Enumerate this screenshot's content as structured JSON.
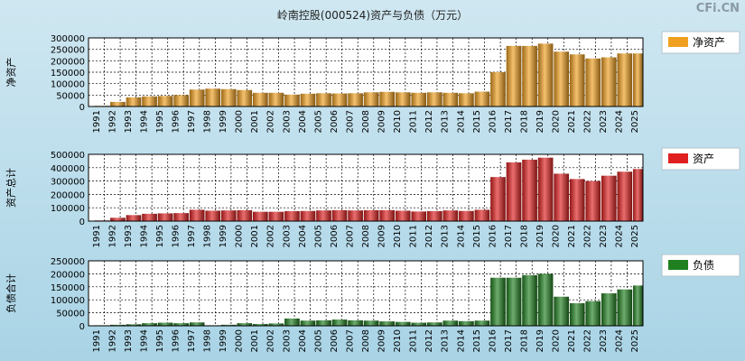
{
  "header": {
    "title": "岭南控股(000524)资产与负债（万元）",
    "watermark": "CFi.CN"
  },
  "colors": {
    "net_assets": "#f0a020",
    "assets": "#e02020",
    "liabilities": "#208020",
    "plot_bg": "#ffffff",
    "grid": "#000000"
  },
  "chart_data": [
    {
      "type": "bar",
      "id": "net_assets",
      "title": "岭南控股(000524)资产与负债（万元）",
      "ylabel": "净资产",
      "legend": "净资产",
      "ylim": [
        0,
        300000
      ],
      "yticks": [
        0,
        50000,
        100000,
        150000,
        200000,
        250000,
        300000
      ],
      "categories": [
        "1991",
        "1992",
        "1993",
        "1994",
        "1995",
        "1996",
        "1997",
        "1998",
        "1999",
        "2000",
        "2001",
        "2002",
        "2003",
        "2004",
        "2005",
        "2006",
        "2007",
        "2008",
        "2009",
        "2010",
        "2011",
        "2012",
        "2013",
        "2014",
        "2015",
        "2016",
        "2017",
        "2018",
        "2019",
        "2020",
        "2021",
        "2022",
        "2023",
        "2024",
        "2025"
      ],
      "values": [
        3000,
        20000,
        40000,
        44000,
        46000,
        50000,
        74000,
        78000,
        76000,
        72000,
        60000,
        60000,
        52000,
        56000,
        58000,
        57000,
        58000,
        62000,
        64000,
        62000,
        60000,
        62000,
        60000,
        58000,
        65000,
        150000,
        265000,
        265000,
        275000,
        240000,
        228000,
        210000,
        215000,
        232000,
        232000
      ]
    },
    {
      "type": "bar",
      "id": "assets",
      "ylabel": "资产总计",
      "legend": "资产",
      "ylim": [
        0,
        500000
      ],
      "yticks": [
        0,
        100000,
        200000,
        300000,
        400000,
        500000
      ],
      "categories": [
        "1991",
        "1992",
        "1993",
        "1994",
        "1995",
        "1996",
        "1997",
        "1998",
        "1999",
        "2000",
        "2001",
        "2002",
        "2003",
        "2004",
        "2005",
        "2006",
        "2007",
        "2008",
        "2009",
        "2010",
        "2011",
        "2012",
        "2013",
        "2014",
        "2015",
        "2016",
        "2017",
        "2018",
        "2019",
        "2020",
        "2021",
        "2022",
        "2023",
        "2024",
        "2025"
      ],
      "values": [
        5000,
        25000,
        45000,
        55000,
        58000,
        60000,
        85000,
        78000,
        80000,
        82000,
        70000,
        70000,
        75000,
        76000,
        80000,
        82000,
        80000,
        82000,
        82000,
        78000,
        72000,
        75000,
        80000,
        76000,
        85000,
        330000,
        440000,
        460000,
        475000,
        355000,
        315000,
        300000,
        340000,
        370000,
        390000
      ]
    },
    {
      "type": "bar",
      "id": "liabilities",
      "ylabel": "负债合计",
      "legend": "负债",
      "ylim": [
        0,
        250000
      ],
      "yticks": [
        0,
        50000,
        100000,
        150000,
        200000,
        250000
      ],
      "categories": [
        "1991",
        "1992",
        "1993",
        "1994",
        "1995",
        "1996",
        "1997",
        "1998",
        "1999",
        "2000",
        "2001",
        "2002",
        "2003",
        "2004",
        "2005",
        "2006",
        "2007",
        "2008",
        "2009",
        "2010",
        "2011",
        "2012",
        "2013",
        "2014",
        "2015",
        "2016",
        "2017",
        "2018",
        "2019",
        "2020",
        "2021",
        "2022",
        "2023",
        "2024",
        "2025"
      ],
      "values": [
        2000,
        4000,
        6000,
        10000,
        12000,
        10000,
        13000,
        2000,
        4000,
        10000,
        7000,
        9000,
        28000,
        20000,
        21000,
        24000,
        21000,
        20000,
        17000,
        15000,
        12000,
        13000,
        20000,
        18000,
        20000,
        185000,
        185000,
        195000,
        200000,
        112000,
        87000,
        95000,
        125000,
        140000,
        155000
      ]
    }
  ]
}
